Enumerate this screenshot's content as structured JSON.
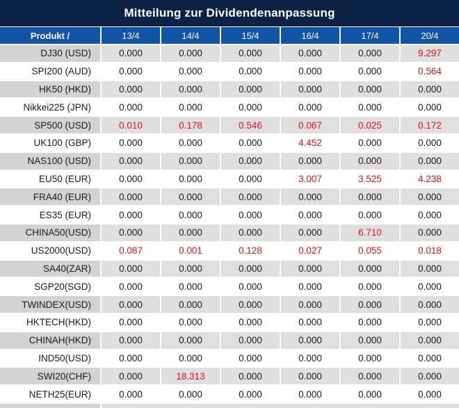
{
  "title": "Mitteilung zur Dividendenanpassung",
  "table": {
    "product_header": "Produkt /",
    "date_columns": [
      "13/4",
      "14/4",
      "15/4",
      "16/4",
      "17/4",
      "20/4"
    ],
    "rows": [
      {
        "product": "DJ30 (USD)",
        "values": [
          "0.000",
          "0.000",
          "0.000",
          "0.000",
          "0.000",
          "9.297"
        ]
      },
      {
        "product": "SPI200 (AUD)",
        "values": [
          "0.000",
          "0.000",
          "0.000",
          "0.000",
          "0.000",
          "0.564"
        ]
      },
      {
        "product": "HK50 (HKD)",
        "values": [
          "0.000",
          "0.000",
          "0.000",
          "0.000",
          "0.000",
          "0.000"
        ]
      },
      {
        "product": "Nikkei225 (JPN)",
        "values": [
          "0.000",
          "0.000",
          "0.000",
          "0.000",
          "0.000",
          "0.000"
        ]
      },
      {
        "product": "SP500 (USD)",
        "values": [
          "0.010",
          "0.178",
          "0.546",
          "0.067",
          "0.025",
          "0.172"
        ]
      },
      {
        "product": "UK100 (GBP)",
        "values": [
          "0.000",
          "0.000",
          "0.000",
          "4.452",
          "0.000",
          "0.000"
        ]
      },
      {
        "product": "NAS100 (USD)",
        "values": [
          "0.000",
          "0.000",
          "0.000",
          "0.000",
          "0.000",
          "0.000"
        ]
      },
      {
        "product": "EU50 (EUR)",
        "values": [
          "0.000",
          "0.000",
          "0.000",
          "3.007",
          "3.525",
          "4.238"
        ]
      },
      {
        "product": "FRA40 (EUR)",
        "values": [
          "0.000",
          "0.000",
          "0.000",
          "0.000",
          "0.000",
          "0.000"
        ]
      },
      {
        "product": "ES35 (EUR)",
        "values": [
          "0.000",
          "0.000",
          "0.000",
          "0.000",
          "0.000",
          "0.000"
        ]
      },
      {
        "product": "CHINA50(USD)",
        "values": [
          "0.000",
          "0.000",
          "0.000",
          "0.000",
          "6.710",
          "0.000"
        ]
      },
      {
        "product": "US2000(USD)",
        "values": [
          "0.087",
          "0.001",
          "0.128",
          "0.027",
          "0.055",
          "0.018"
        ]
      },
      {
        "product": "SA40(ZAR)",
        "values": [
          "0.000",
          "0.000",
          "0.000",
          "0.000",
          "0.000",
          "0.000"
        ]
      },
      {
        "product": "SGP20(SGD)",
        "values": [
          "0.000",
          "0.000",
          "0.000",
          "0.000",
          "0.000",
          "0.000"
        ]
      },
      {
        "product": "TWINDEX(USD)",
        "values": [
          "0.000",
          "0.000",
          "0.000",
          "0.000",
          "0.000",
          "0.000"
        ]
      },
      {
        "product": "HKTECH(HKD)",
        "values": [
          "0.000",
          "0.000",
          "0.000",
          "0.000",
          "0.000",
          "0.000"
        ]
      },
      {
        "product": "CHINAH(HKD)",
        "values": [
          "0.000",
          "0.000",
          "0.000",
          "0.000",
          "0.000",
          "0.000"
        ]
      },
      {
        "product": "IND50(USD)",
        "values": [
          "0.000",
          "0.000",
          "0.000",
          "0.000",
          "0.000",
          "0.000"
        ]
      },
      {
        "product": "SWI20(CHF)",
        "values": [
          "0.000",
          "18.313",
          "0.000",
          "0.000",
          "0.000",
          "0.000"
        ]
      },
      {
        "product": "NETH25(EUR)",
        "values": [
          "0.000",
          "0.000",
          "0.000",
          "0.000",
          "0.000",
          "0.000"
        ]
      }
    ]
  },
  "colors": {
    "title_bar_bg": "#0d2144",
    "header_bg": "#1153a4",
    "row_gray": "#dfdfdf",
    "row_gray_product": "#d3d3d3",
    "text": "#1a1a1a",
    "nonzero_value_red": "#ee1111"
  }
}
